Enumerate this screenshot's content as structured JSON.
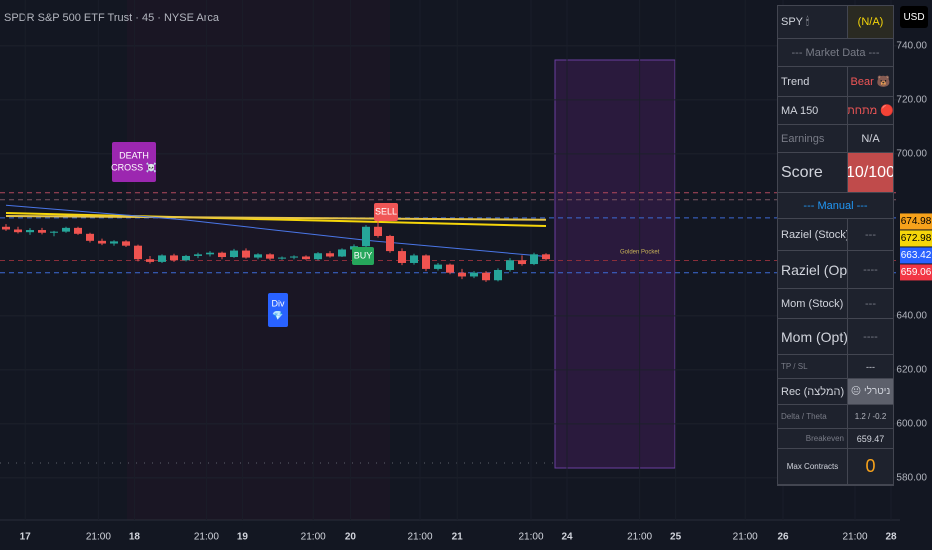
{
  "chart_data": {
    "type": "candlestick",
    "title": "SPDR S&P 500 ETF Trust · 45 · NYSE Arca",
    "currency": "USD",
    "xlim": [
      -0.5,
      74.5
    ],
    "ylim": [
      564.4,
      757
    ],
    "xticks": [
      {
        "value": 1.6,
        "label": "17"
      },
      {
        "value": 7.7,
        "label": "21:00"
      },
      {
        "value": 10.7,
        "label": "18"
      },
      {
        "value": 16.7,
        "label": "21:00"
      },
      {
        "value": 19.7,
        "label": "19"
      },
      {
        "value": 25.6,
        "label": "21:00"
      },
      {
        "value": 28.7,
        "label": "20"
      },
      {
        "value": 34.5,
        "label": "21:00"
      },
      {
        "value": 37.6,
        "label": "21"
      },
      {
        "value": 43.75,
        "label": "21:00"
      },
      {
        "value": 46.75,
        "label": "24"
      },
      {
        "value": 52.8,
        "label": "21:00"
      },
      {
        "value": 55.8,
        "label": "25"
      },
      {
        "value": 61.6,
        "label": "21:00"
      },
      {
        "value": 64.75,
        "label": "26"
      },
      {
        "value": 70.75,
        "label": "21:00"
      },
      {
        "value": 73.75,
        "label": "28"
      }
    ],
    "yticks": [
      {
        "value": 580,
        "label": "580.00"
      },
      {
        "value": 600,
        "label": "600.00"
      },
      {
        "value": 620,
        "label": "620.00"
      },
      {
        "value": 640,
        "label": "640.00"
      },
      {
        "value": 700,
        "label": "700.00"
      },
      {
        "value": 720,
        "label": "720.00"
      },
      {
        "value": 740,
        "label": "740.00"
      }
    ],
    "grid": true,
    "up_color": "#26a69a",
    "down_color": "#ef5350",
    "open": [
      673,
      672,
      671,
      671.8,
      670.8,
      671.2,
      672.6,
      670.4,
      667.8,
      666.8,
      667.6,
      666,
      661,
      660,
      662.4,
      660.6,
      662.2,
      662.8,
      663.4,
      661.8,
      664.2,
      661.6,
      662.8,
      661.2,
      661.6,
      662,
      661,
      663.2,
      662,
      664.6,
      665.8,
      673,
      669.6,
      664,
      659.6,
      662.4,
      657.4,
      659,
      656,
      654.6,
      656,
      653.2,
      657,
      660.6,
      659.2,
      662.8
    ],
    "high": [
      674,
      673,
      672.5,
      672.6,
      671.5,
      673,
      673,
      670.8,
      668.6,
      668,
      668,
      666.4,
      662.2,
      662.8,
      663,
      662.6,
      663.4,
      664,
      663.8,
      664.8,
      665,
      663.2,
      663.2,
      662,
      662.4,
      662.4,
      663.6,
      664,
      665,
      666.5,
      673.6,
      677.6,
      670,
      665,
      663,
      662.8,
      659.6,
      659.4,
      657.4,
      656.6,
      656.6,
      657.6,
      661.4,
      662.4,
      663.4,
      663.2
    ],
    "low": [
      671.5,
      670.5,
      670,
      670.2,
      669.5,
      670.8,
      670,
      667.2,
      666.2,
      666,
      665.5,
      660.2,
      659.4,
      659.6,
      660,
      660.2,
      661.4,
      662,
      661,
      661.5,
      661.2,
      661,
      660.6,
      660.8,
      661,
      660.8,
      660.6,
      661.6,
      661.8,
      663.8,
      665.4,
      669,
      663.4,
      658.8,
      659,
      656.6,
      656.8,
      655.4,
      653.6,
      654,
      652.6,
      652.8,
      656.4,
      658.6,
      658.8,
      660.4
    ],
    "close": [
      672,
      671,
      671.8,
      670.8,
      671.2,
      672.6,
      670.4,
      667.8,
      666.8,
      667.6,
      666,
      661,
      660,
      662.4,
      660.6,
      662.2,
      662.8,
      663.4,
      661.8,
      664.2,
      661.6,
      662.8,
      661.2,
      661.6,
      662,
      661,
      663.2,
      662,
      664.6,
      665.8,
      673,
      669.6,
      664,
      659.6,
      662.4,
      657.4,
      659,
      656,
      654.6,
      656,
      653.2,
      657,
      660.6,
      659.2,
      662.8,
      661
    ],
    "lines": [
      {
        "color": "#f5d60a",
        "x": [
          0,
          45
        ],
        "values": [
          678.1,
          673.3
        ]
      },
      {
        "color": "#e8c547",
        "x": [
          0,
          45
        ],
        "values": [
          677,
          675.6
        ]
      },
      {
        "color": "#4a76e8",
        "x": [
          0,
          15,
          30,
          45
        ],
        "values": [
          681,
          675.5,
          668,
          662
        ]
      }
    ],
    "hlines": [
      {
        "value": 685.6,
        "color": "#b2485c"
      },
      {
        "value": 683,
        "color": "#7a5560"
      },
      {
        "value": 676.3,
        "color": "#3d6ad6"
      },
      {
        "value": 656,
        "color": "#3d6ad6"
      },
      {
        "value": 660.5,
        "color": "#8a2e3a"
      }
    ],
    "price_labels": [
      {
        "value": 674.98,
        "color": "#f7a21b"
      },
      {
        "value": 672.98,
        "color": "#f5d60a"
      },
      {
        "value": 663.42,
        "color": "#2962ff"
      },
      {
        "value": 659.06,
        "color": "#f23645"
      }
    ],
    "annotations": [
      {
        "lines": [
          "DEATH",
          "CROSS ☠️"
        ],
        "color": "#9c27b0"
      },
      {
        "lines": [
          "SELL"
        ],
        "color": "#f05656"
      },
      {
        "lines": [
          "BUY"
        ],
        "color": "#26a65b"
      },
      {
        "lines": [
          "Div",
          "💎"
        ],
        "color": "#2962ff"
      }
    ],
    "note": "Golden Pocket"
  },
  "panel": {
    "rows": [
      [
        "SPY 🕯",
        "(N/A)"
      ],
      [
        "--- Market Data ---"
      ],
      [
        "Trend",
        "Bear 🐻"
      ],
      [
        "MA 150",
        "מתחת 🔴"
      ],
      [
        "Earnings",
        "N/A"
      ],
      [
        "Score",
        "10/100"
      ],
      [
        "--- Manual ---"
      ],
      [
        "Raziel (Stock)",
        "---"
      ],
      [
        "Raziel (Opt)",
        "----"
      ],
      [
        "Mom (Stock)",
        "---"
      ],
      [
        "Mom (Opt)",
        "----"
      ],
      [
        "TP / SL",
        "---"
      ],
      [
        "Rec (המלצה)",
        "😐 ניטרלי"
      ],
      [
        "Delta / Theta",
        "1.2 / -0.2"
      ],
      [
        "Breakeven",
        "659.47"
      ],
      [
        "Max Contracts",
        "0"
      ]
    ]
  }
}
